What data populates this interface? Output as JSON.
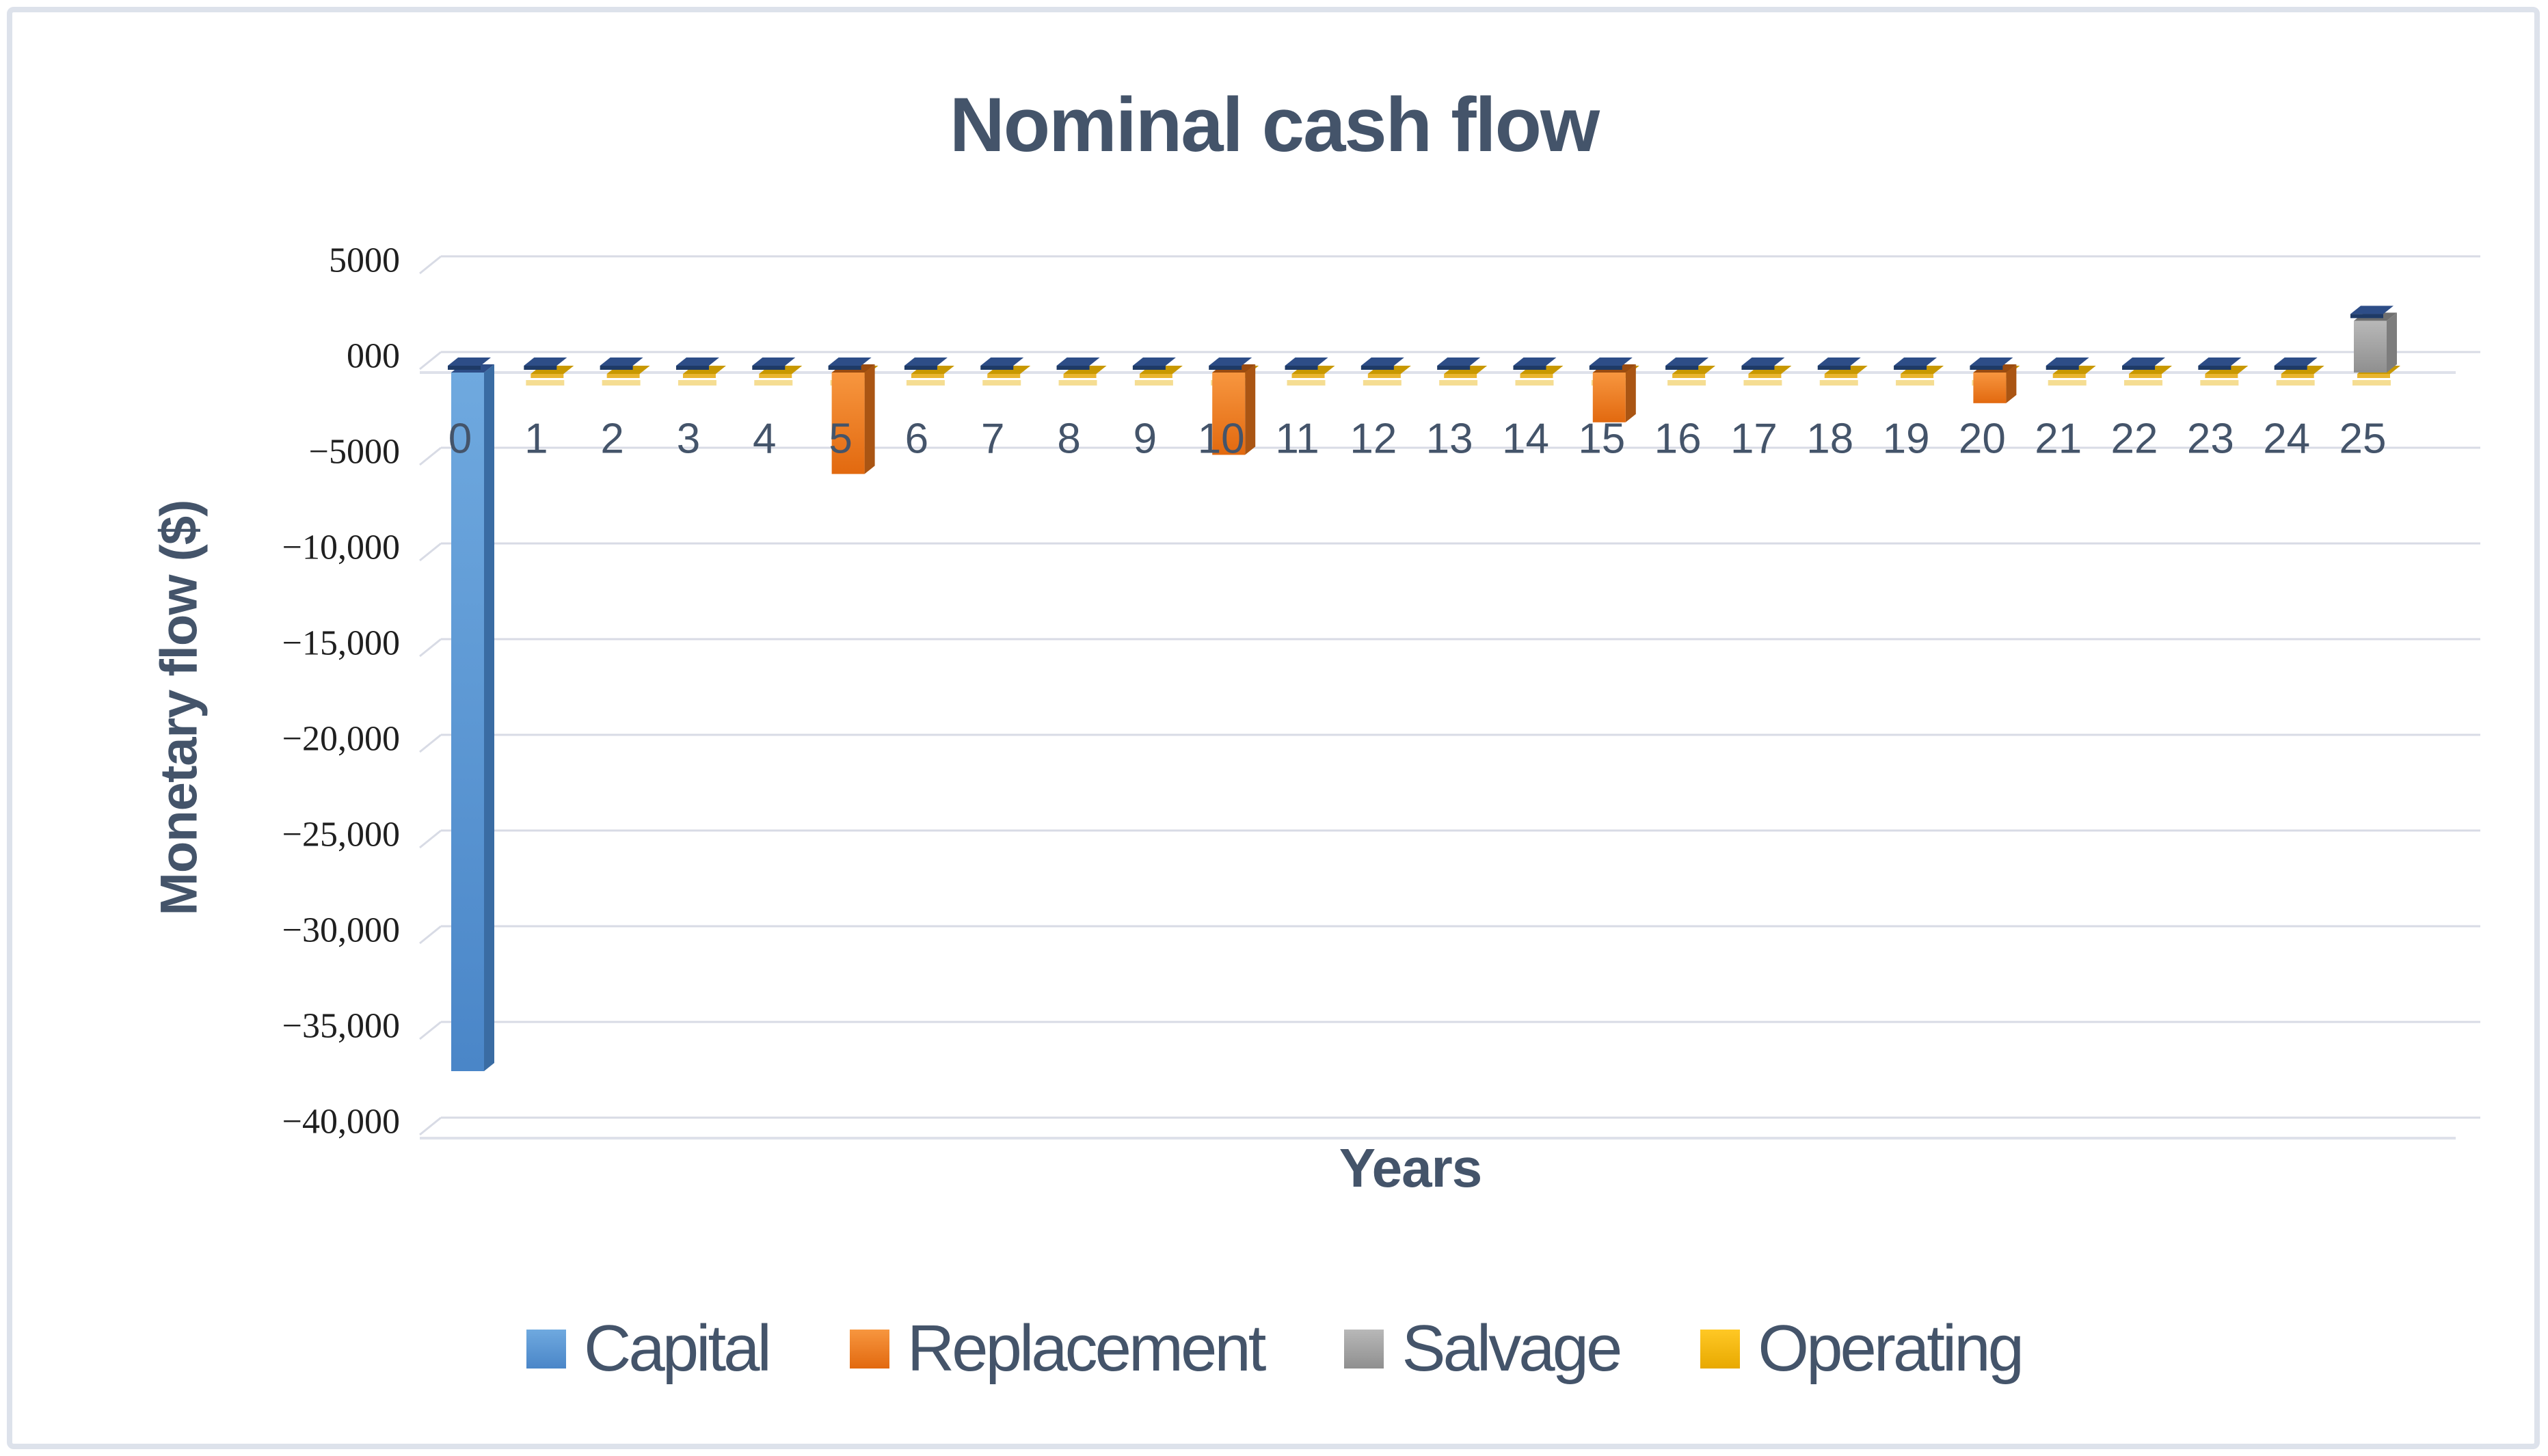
{
  "chart_data": {
    "type": "bar",
    "variant": "3d-column",
    "title": "Nominal cash flow",
    "xlabel": "Years",
    "ylabel": "Monetary flow ($)",
    "categories": [
      "0",
      "1",
      "2",
      "3",
      "4",
      "5",
      "6",
      "7",
      "8",
      "9",
      "10",
      "11",
      "12",
      "13",
      "14",
      "15",
      "16",
      "17",
      "18",
      "19",
      "20",
      "21",
      "22",
      "23",
      "24",
      "25"
    ],
    "series": [
      {
        "name": "Capital",
        "color": "#5B9BD5",
        "color_light": "#6FA9DF",
        "color_dark": "#4A86C8",
        "side_color": "#3A6CA3",
        "top_color": "#2D4D87",
        "values": [
          -36500,
          0,
          0,
          0,
          0,
          0,
          0,
          0,
          0,
          0,
          0,
          0,
          0,
          0,
          0,
          0,
          0,
          0,
          0,
          0,
          0,
          0,
          0,
          0,
          0,
          0
        ]
      },
      {
        "name": "Replacement",
        "color": "#ED7D31",
        "color_light": "#F7963F",
        "color_dark": "#E2690F",
        "side_color": "#AA5513",
        "top_color": "#9A4B10",
        "values": [
          0,
          0,
          0,
          0,
          0,
          -5300,
          0,
          0,
          0,
          0,
          -4300,
          0,
          0,
          0,
          0,
          -2600,
          0,
          0,
          0,
          0,
          -1600,
          0,
          0,
          0,
          0,
          0
        ]
      },
      {
        "name": "Salvage",
        "color": "#A6A6A6",
        "color_light": "#B8B8B8",
        "color_dark": "#8F8F8F",
        "side_color": "#7D7D7D",
        "top_color": "#6F6F6F",
        "values": [
          0,
          0,
          0,
          0,
          0,
          0,
          0,
          0,
          0,
          0,
          0,
          0,
          0,
          0,
          0,
          0,
          0,
          0,
          0,
          0,
          0,
          0,
          0,
          0,
          0,
          2700
        ]
      },
      {
        "name": "Operating",
        "color": "#FFC000",
        "color_light": "#FFC825",
        "color_dark": "#E8A900",
        "side_color": "#BF8F00",
        "top_color": "#C89800",
        "values": [
          0,
          -400,
          -400,
          -400,
          -400,
          -400,
          -400,
          -400,
          -400,
          -400,
          -400,
          -400,
          -400,
          -400,
          -400,
          -400,
          -400,
          -400,
          -400,
          -400,
          -400,
          -400,
          -400,
          -400,
          -400,
          -400
        ]
      }
    ],
    "ylim": [
      -40000,
      5000
    ],
    "ytick_step": 5000,
    "ytick_labels": [
      "5000",
      "000",
      "−5000",
      "−10,000",
      "−15,000",
      "−20,000",
      "−25,000",
      "−30,000",
      "−35,000",
      "−40,000"
    ],
    "ytick_values": [
      5000,
      0,
      -5000,
      -10000,
      -15000,
      -20000,
      -25000,
      -30000,
      -35000,
      -40000
    ],
    "legend_position": "bottom",
    "gridlines": true
  },
  "style_colors": {
    "title_text": "#44546A",
    "axis_title_text": "#44546A",
    "category_label_text": "#44546A",
    "ytick_label_text": "#1F1F1F",
    "gridline": "#D8DBE5",
    "front_gridline": "#DEE1EA",
    "zero_cap_top": "#2D4D87",
    "zero_cap_lip": "#1E3A66",
    "operating_gold_top": "#C89800",
    "operating_gold_lip": "#E9B52F",
    "operating_pale_strip": "#F5DD92",
    "frame_border": "#DDE2EB"
  }
}
